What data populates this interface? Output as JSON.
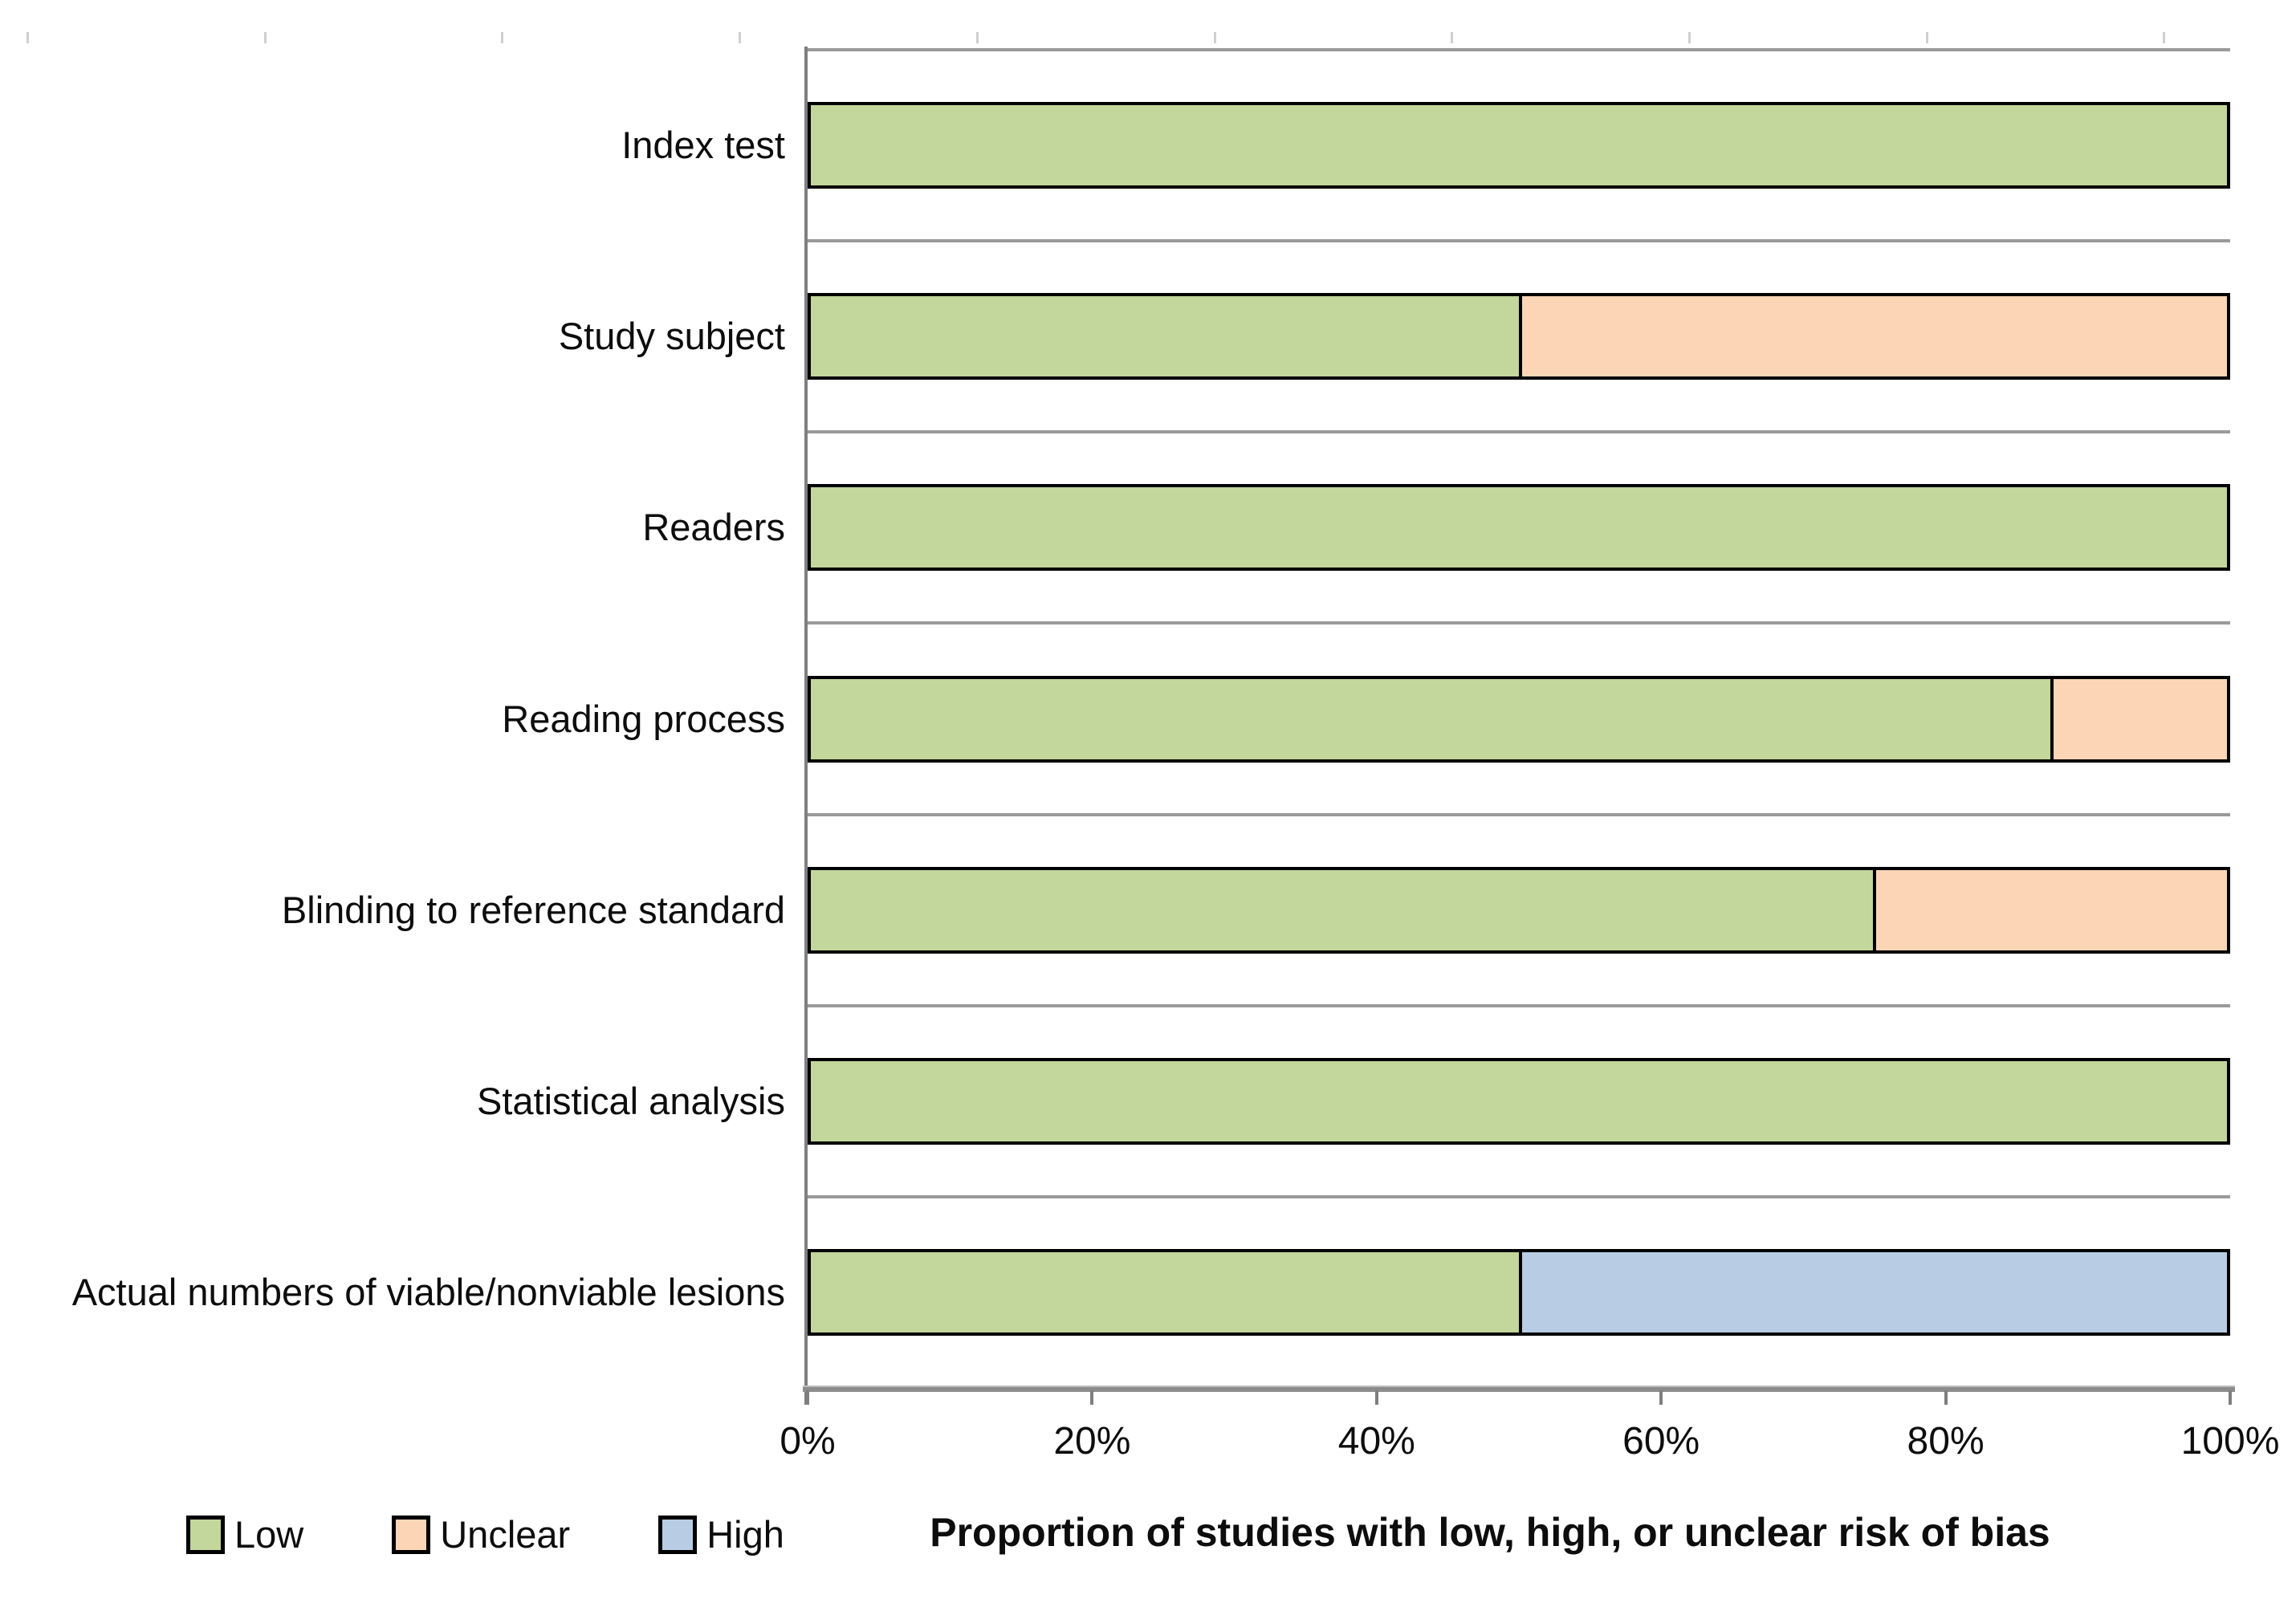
{
  "chart_data": {
    "type": "bar",
    "orientation": "horizontal",
    "stacked": true,
    "title": "",
    "xlabel": "Proportion of studies with low, high, or unclear risk of bias",
    "ylabel": "",
    "xlim": [
      0,
      100
    ],
    "x_ticks": [
      "0%",
      "20%",
      "40%",
      "60%",
      "80%",
      "100%"
    ],
    "grid": "category-separators-horizontal",
    "legend_position": "bottom-left",
    "categories": [
      "Index test",
      "Study subject",
      "Readers",
      "Reading process",
      "Blinding to reference standard",
      "Statistical analysis",
      "Actual numbers of viable/nonviable lesions"
    ],
    "series": [
      {
        "name": "Low",
        "color": "#c3d69b",
        "values": [
          100,
          50,
          100,
          87.5,
          75,
          100,
          50
        ]
      },
      {
        "name": "Unclear",
        "color": "#fbd5b5",
        "values": [
          0,
          50,
          0,
          12.5,
          25,
          0,
          0
        ]
      },
      {
        "name": "High",
        "color": "#b8cce4",
        "values": [
          0,
          0,
          0,
          0,
          0,
          0,
          50
        ]
      }
    ]
  },
  "legend": {
    "items": [
      {
        "label": "Low",
        "color": "#c3d69b"
      },
      {
        "label": "Unclear",
        "color": "#fbd5b5"
      },
      {
        "label": "High",
        "color": "#b8cce4"
      }
    ]
  },
  "styles": {
    "bar_fill_border": "#000000",
    "gridline_color": "#9a9a9a",
    "axis_color": "#7f7f7f",
    "background": "#ffffff"
  }
}
